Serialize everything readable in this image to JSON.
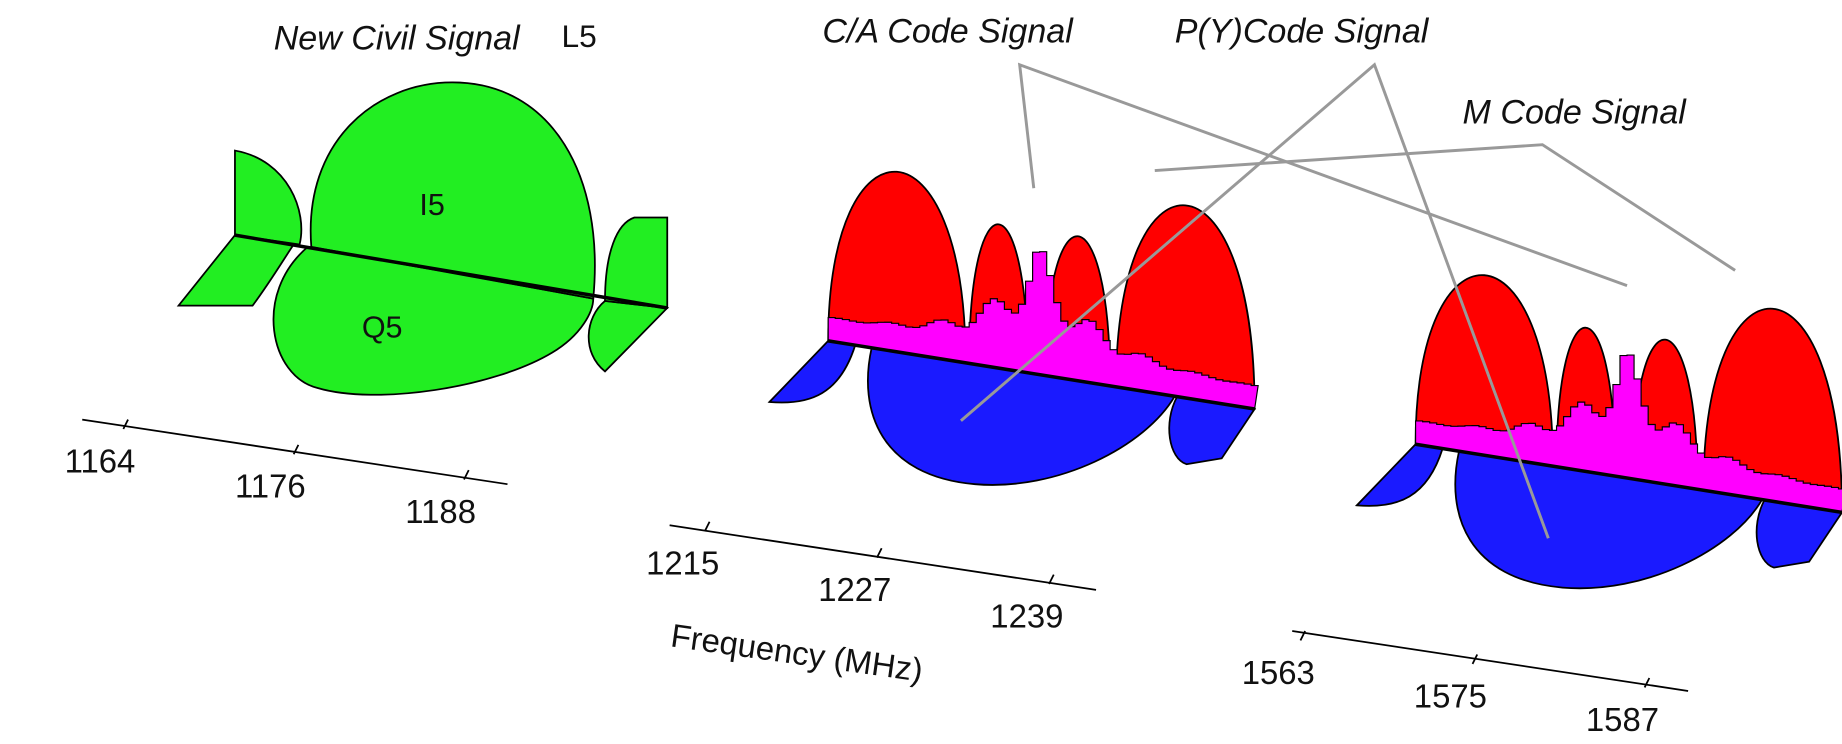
{
  "labels": {
    "l5_title": "New Civil Signal",
    "l5_band": "L5",
    "i5": "I5",
    "q5": "Q5",
    "ca": "C/A Code Signal",
    "py": "P(Y)Code Signal",
    "m": "M Code Signal",
    "x_axis": "Frequency (MHz)"
  },
  "axes": [
    {
      "ticks": [
        1164,
        1176,
        1188
      ]
    },
    {
      "ticks": [
        1215,
        1227,
        1239
      ]
    },
    {
      "ticks": [
        1563,
        1575,
        1587
      ]
    }
  ]
}
